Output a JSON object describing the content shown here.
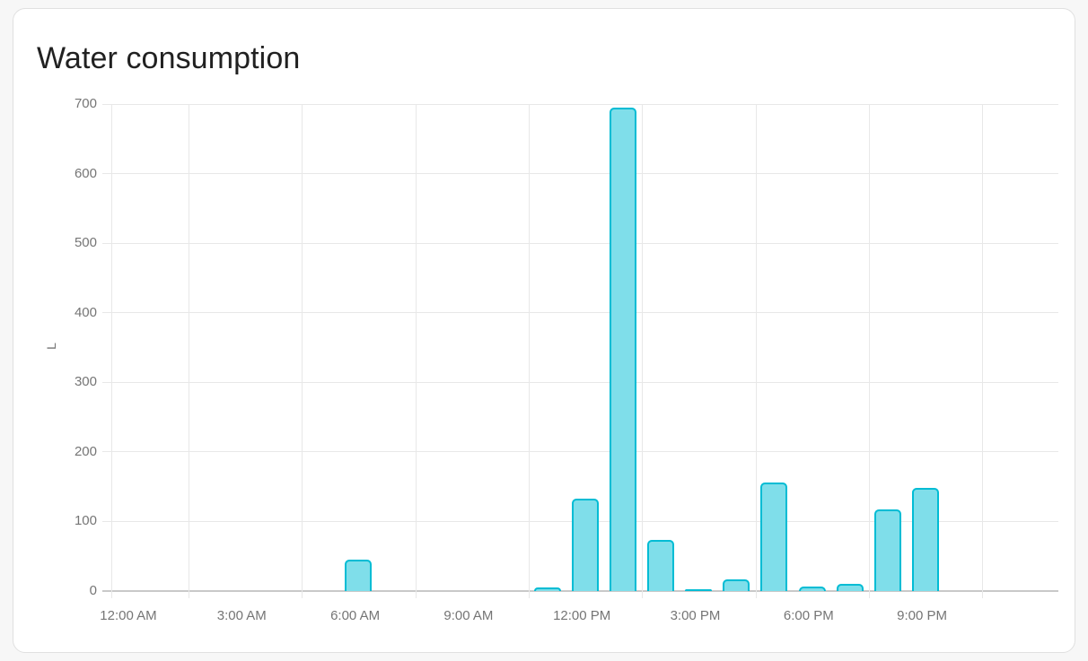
{
  "chart_data": {
    "type": "bar",
    "title": "Water consumption",
    "xlabel": "",
    "ylabel": "L",
    "ylim": [
      0,
      700
    ],
    "yticks": [
      0,
      100,
      200,
      300,
      400,
      500,
      600,
      700
    ],
    "xtick_labels": [
      "12:00 AM",
      "3:00 AM",
      "6:00 AM",
      "9:00 AM",
      "12:00 PM",
      "3:00 PM",
      "6:00 PM",
      "9:00 PM"
    ],
    "categories_hours": [
      0,
      1,
      2,
      3,
      4,
      5,
      6,
      7,
      8,
      9,
      10,
      11,
      12,
      13,
      14,
      15,
      16,
      17,
      18,
      19,
      20,
      21,
      22,
      23
    ],
    "values_liters": [
      0,
      0,
      0,
      0,
      0,
      0,
      45,
      0,
      0,
      0,
      0,
      5,
      133,
      695,
      73,
      2,
      17,
      156,
      7,
      10,
      118,
      149,
      0,
      0
    ],
    "grid": true,
    "legend": "none"
  },
  "theme": {
    "page_bg": "#f7f7f7",
    "card_bg": "#ffffff",
    "card_border": "#e0e0e0",
    "title_color": "#212121",
    "tick_label_color": "#757575",
    "gridline_color": "#e8e8e8",
    "axis_line_color": "#c9c9c9",
    "bar_fill": "#7FDEEA",
    "bar_stroke": "#00BCD4"
  }
}
